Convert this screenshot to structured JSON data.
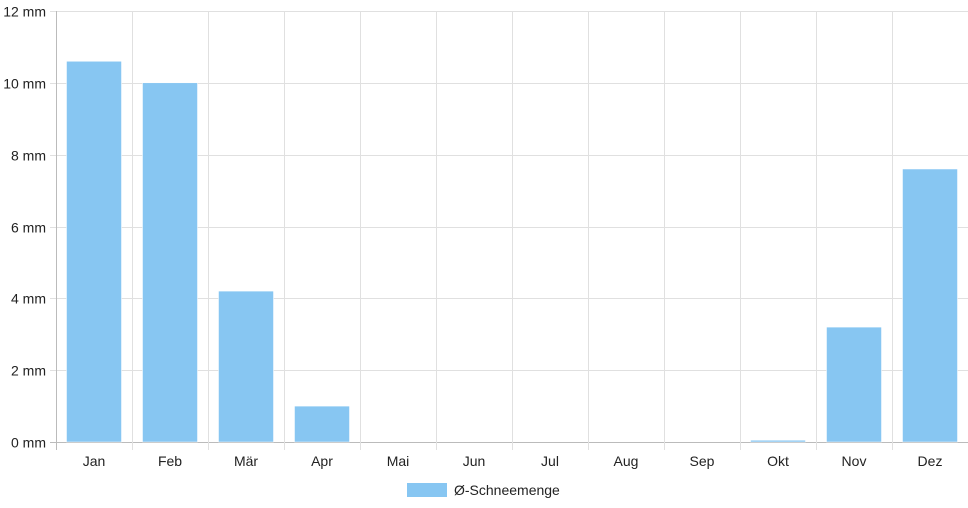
{
  "chart_data": {
    "type": "bar",
    "categories": [
      "Jan",
      "Feb",
      "Mär",
      "Apr",
      "Mai",
      "Jun",
      "Jul",
      "Aug",
      "Sep",
      "Okt",
      "Nov",
      "Dez"
    ],
    "series": [
      {
        "name": "Ø-Schneemenge",
        "values": [
          10.6,
          10.0,
          4.2,
          1.0,
          0,
          0,
          0,
          0,
          0,
          0.05,
          3.2,
          7.6
        ],
        "color": "#87c6f2"
      }
    ],
    "unit": "mm",
    "ylim": [
      0,
      12
    ],
    "yticks": [
      0,
      2,
      4,
      6,
      8,
      10,
      12
    ],
    "ytick_labels": [
      "0 mm",
      "2 mm",
      "4 mm",
      "6 mm",
      "8 mm",
      "10 mm",
      "12 mm"
    ],
    "grid": true,
    "legend": "bottom-center",
    "colors": {
      "grid": "#e0e0e0",
      "axis": "#bbbbbb",
      "text": "#222222"
    }
  }
}
